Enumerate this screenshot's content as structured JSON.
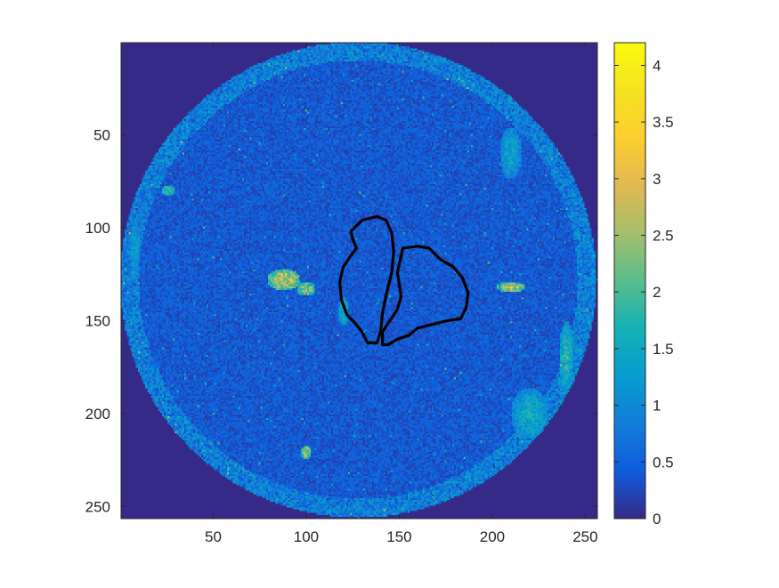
{
  "chart_data": {
    "type": "heatmap",
    "title": "",
    "xlabel": "",
    "ylabel": "",
    "xlim": [
      0.5,
      256.5
    ],
    "ylim": [
      0.5,
      256.5
    ],
    "y_direction": "reverse",
    "x_ticks": [
      50,
      100,
      150,
      200,
      250
    ],
    "x_tick_labels": [
      "50",
      "100",
      "150",
      "200",
      "250"
    ],
    "y_ticks": [
      50,
      100,
      150,
      200,
      250
    ],
    "y_tick_labels": [
      "50",
      "100",
      "150",
      "200",
      "250"
    ],
    "colormap": "parula",
    "color_range": [
      0,
      4.2
    ],
    "colorbar": {
      "placement": "right",
      "ticks": [
        0,
        0.5,
        1,
        1.5,
        2,
        2.5,
        3,
        3.5,
        4
      ],
      "tick_labels": [
        "0",
        "0.5",
        "1",
        "1.5",
        "2",
        "2.5",
        "3",
        "3.5",
        "4"
      ]
    },
    "background_value": 0,
    "field_of_view": {
      "shape": "circle",
      "center_x": 128,
      "center_y": 128,
      "radius": 128,
      "typical_value": 0.45
    },
    "bright_regions": [
      {
        "label": "left mid cluster",
        "cx": 88,
        "cy": 128,
        "rx": 9,
        "ry": 6,
        "value": 3.6
      },
      {
        "label": "left mid cluster tail",
        "cx": 100,
        "cy": 133,
        "rx": 5,
        "ry": 4,
        "value": 3.2
      },
      {
        "label": "right band",
        "cx": 210,
        "cy": 132,
        "rx": 8,
        "ry": 3,
        "value": 3.4
      },
      {
        "label": "lower left spot",
        "cx": 100,
        "cy": 221,
        "rx": 3,
        "ry": 4,
        "value": 3.3
      },
      {
        "label": "upper left spot",
        "cx": 26,
        "cy": 80,
        "rx": 4,
        "ry": 3,
        "value": 2.6
      },
      {
        "label": "left tissue band",
        "cx": 120,
        "cy": 145,
        "rx": 3,
        "ry": 8,
        "value": 2.0
      },
      {
        "label": "right edge band",
        "cx": 240,
        "cy": 170,
        "rx": 4,
        "ry": 20,
        "value": 2.2
      },
      {
        "label": "lower right band",
        "cx": 220,
        "cy": 200,
        "rx": 10,
        "ry": 14,
        "value": 1.9
      },
      {
        "label": "upper right arc",
        "cx": 210,
        "cy": 60,
        "rx": 6,
        "ry": 14,
        "value": 1.8
      },
      {
        "label": "far left edge",
        "cx": 8,
        "cy": 110,
        "rx": 3,
        "ry": 14,
        "value": 1.6
      }
    ],
    "outlines": [
      {
        "name": "",
        "color": "#000000",
        "points": [
          [
            130,
            96
          ],
          [
            138,
            94
          ],
          [
            143,
            96
          ],
          [
            146,
            103
          ],
          [
            147,
            113
          ],
          [
            146,
            124
          ],
          [
            143,
            136
          ],
          [
            141,
            146
          ],
          [
            140,
            156
          ],
          [
            138,
            162
          ],
          [
            133,
            162
          ],
          [
            130,
            156
          ],
          [
            126,
            151
          ],
          [
            122,
            147
          ],
          [
            119,
            139
          ],
          [
            118,
            129
          ],
          [
            120,
            121
          ],
          [
            124,
            115
          ],
          [
            127,
            111
          ],
          [
            125,
            106
          ],
          [
            124,
            102
          ]
        ]
      },
      {
        "name": "",
        "color": "#000000",
        "points": [
          [
            152,
            111
          ],
          [
            160,
            110
          ],
          [
            166,
            111
          ],
          [
            172,
            117
          ],
          [
            179,
            121
          ],
          [
            184,
            127
          ],
          [
            187,
            135
          ],
          [
            186,
            143
          ],
          [
            183,
            149
          ],
          [
            176,
            150
          ],
          [
            168,
            152
          ],
          [
            160,
            154
          ],
          [
            155,
            158
          ],
          [
            149,
            160
          ],
          [
            144,
            163
          ],
          [
            141,
            163
          ],
          [
            141,
            156
          ],
          [
            145,
            150
          ],
          [
            149,
            144
          ],
          [
            151,
            137
          ],
          [
            150,
            130
          ],
          [
            149,
            124
          ]
        ]
      }
    ]
  }
}
